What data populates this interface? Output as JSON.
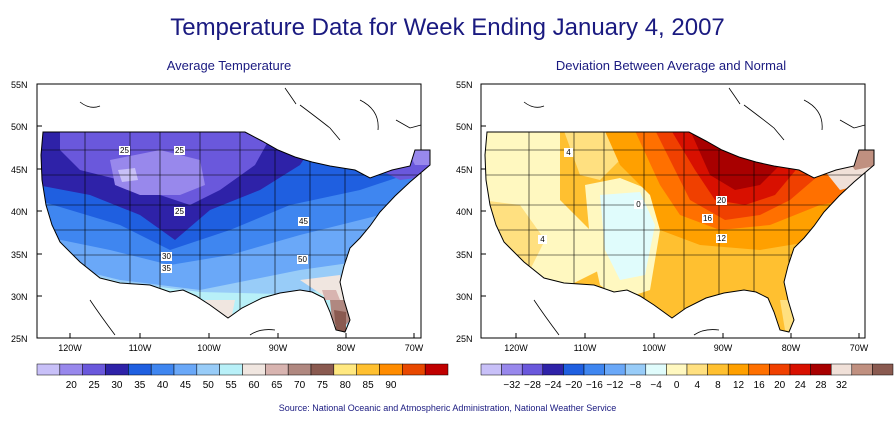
{
  "title": "Temperature Data for Week Ending January 4, 2007",
  "source": "Source:  National Oceanic and Atmospheric Administration, National Weather Service",
  "lat_labels": [
    "55N",
    "50N",
    "45N",
    "40N",
    "35N",
    "30N",
    "25N"
  ],
  "lon_labels": [
    "120W",
    "110W",
    "100W",
    "90W",
    "80W",
    "70W"
  ],
  "maps": [
    {
      "subtitle": "Average Temperature",
      "colorbar": {
        "colors": [
          "#c8c0f8",
          "#9888ec",
          "#6a58dc",
          "#2e22a8",
          "#1f5fe0",
          "#3f86f0",
          "#6aa8f8",
          "#98ccf8",
          "#b8f0f8",
          "#f0e6e0",
          "#d8b4b0",
          "#b08880",
          "#8a5a50",
          "#ffe880",
          "#ffc030",
          "#ff8c00",
          "#e84800",
          "#c00000"
        ],
        "labels": [
          "20",
          "25",
          "30",
          "35",
          "40",
          "45",
          "50",
          "55",
          "60",
          "65",
          "70",
          "75",
          "80",
          "85",
          "90"
        ]
      },
      "contour_labels": [
        "25",
        "25",
        "25",
        "30",
        "35",
        "45",
        "50"
      ]
    },
    {
      "subtitle": "Deviation Between Average and Normal",
      "colorbar": {
        "colors": [
          "#c8c0f8",
          "#9888ec",
          "#6a58dc",
          "#2e22a8",
          "#1f5fe0",
          "#3f86f0",
          "#6aa8f8",
          "#98ccf8",
          "#e0fcfc",
          "#fff8c0",
          "#ffe080",
          "#ffc030",
          "#ffa000",
          "#ff7000",
          "#f04000",
          "#d81000",
          "#a80000",
          "#f0e0d8",
          "#c09080",
          "#8a5a50"
        ],
        "labels": [
          "-32",
          "-28",
          "-24",
          "-20",
          "-16",
          "-12",
          "-8",
          "-4",
          "0",
          "4",
          "8",
          "12",
          "16",
          "20",
          "24",
          "28",
          "32"
        ]
      },
      "contour_labels": [
        "4",
        "4",
        "0",
        "20",
        "16",
        "12"
      ]
    }
  ]
}
